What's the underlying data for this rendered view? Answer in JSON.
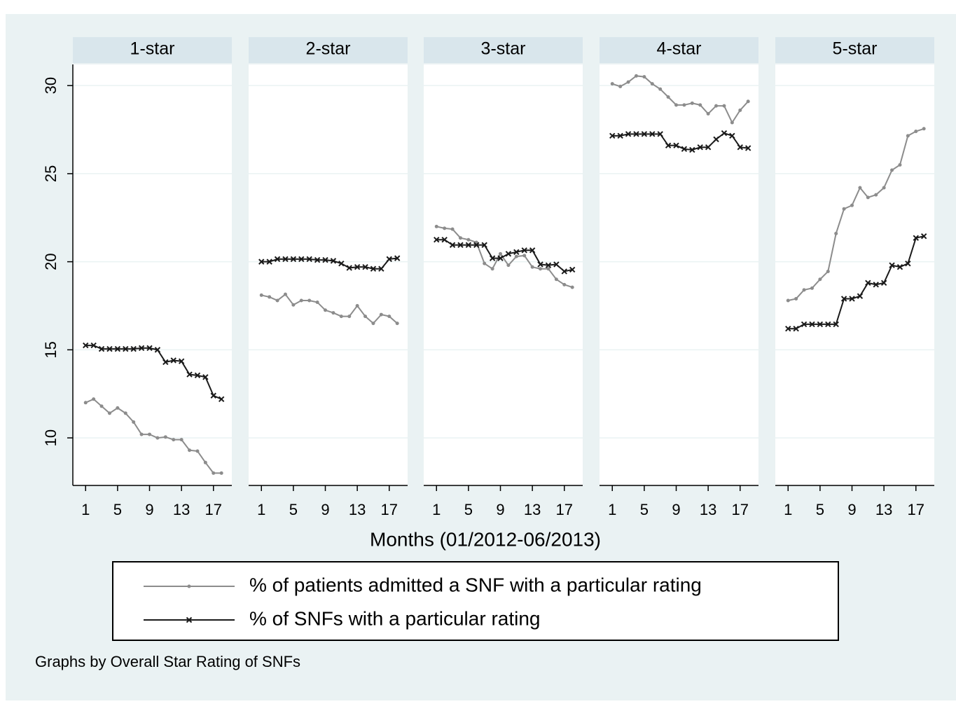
{
  "x_label": "Months (01/2012-06/2013)",
  "note": "Graphs by Overall Star Rating of SNFs",
  "chart_data": [
    {
      "type": "line",
      "title": "1-star",
      "x": [
        1,
        2,
        3,
        4,
        5,
        6,
        7,
        8,
        9,
        10,
        11,
        12,
        13,
        14,
        15,
        16,
        17,
        18
      ],
      "series": [
        {
          "name": "% of patients admitted a SNF with a particular rating",
          "color": "#8c8c8c",
          "marker": "circle",
          "values": [
            12.0,
            12.2,
            11.8,
            11.4,
            11.7,
            11.4,
            10.9,
            10.2,
            10.2,
            10.0,
            10.05,
            9.9,
            9.9,
            9.3,
            9.25,
            8.6,
            8.0,
            8.0
          ]
        },
        {
          "name": "% of SNFs with a particular rating",
          "color": "#1a1a1a",
          "marker": "x",
          "values": [
            15.25,
            15.25,
            15.05,
            15.05,
            15.05,
            15.05,
            15.05,
            15.1,
            15.1,
            15.0,
            14.3,
            14.4,
            14.35,
            13.6,
            13.55,
            13.45,
            12.4,
            12.2
          ]
        }
      ],
      "xlim": [
        -0.6,
        19.3
      ],
      "ylim": [
        7.3,
        31.2
      ],
      "xticks": [
        1,
        5,
        9,
        13,
        17
      ],
      "yticks": [
        10,
        15,
        20,
        25,
        30
      ],
      "grid": true
    },
    {
      "type": "line",
      "title": "2-star",
      "x": [
        1,
        2,
        3,
        4,
        5,
        6,
        7,
        8,
        9,
        10,
        11,
        12,
        13,
        14,
        15,
        16,
        17,
        18
      ],
      "series": [
        {
          "name": "% of patients admitted a SNF with a particular rating",
          "color": "#8c8c8c",
          "marker": "circle",
          "values": [
            18.1,
            18.0,
            17.8,
            18.15,
            17.55,
            17.8,
            17.8,
            17.7,
            17.25,
            17.1,
            16.9,
            16.9,
            17.5,
            16.9,
            16.5,
            17.0,
            16.9,
            16.5
          ]
        },
        {
          "name": "% of SNFs with a particular rating",
          "color": "#1a1a1a",
          "marker": "x",
          "values": [
            20.0,
            20.0,
            20.15,
            20.15,
            20.15,
            20.15,
            20.15,
            20.1,
            20.1,
            20.05,
            19.9,
            19.65,
            19.7,
            19.7,
            19.6,
            19.6,
            20.15,
            20.2
          ]
        }
      ],
      "xlim": [
        -0.6,
        19.3
      ],
      "ylim": [
        7.3,
        31.2
      ],
      "xticks": [
        1,
        5,
        9,
        13,
        17
      ],
      "yticks": [
        10,
        15,
        20,
        25,
        30
      ],
      "grid": true
    },
    {
      "type": "line",
      "title": "3-star",
      "x": [
        1,
        2,
        3,
        4,
        5,
        6,
        7,
        8,
        9,
        10,
        11,
        12,
        13,
        14,
        15,
        16,
        17,
        18
      ],
      "series": [
        {
          "name": "% of patients admitted a SNF with a particular rating",
          "color": "#8c8c8c",
          "marker": "circle",
          "values": [
            22.0,
            21.9,
            21.85,
            21.35,
            21.25,
            21.1,
            19.9,
            19.6,
            20.45,
            19.8,
            20.3,
            20.35,
            19.7,
            19.6,
            19.6,
            19.0,
            18.7,
            18.55
          ]
        },
        {
          "name": "% of SNFs with a particular rating",
          "color": "#1a1a1a",
          "marker": "x",
          "values": [
            21.25,
            21.25,
            20.95,
            20.95,
            20.95,
            20.95,
            20.95,
            20.2,
            20.2,
            20.45,
            20.55,
            20.65,
            20.65,
            19.85,
            19.8,
            19.85,
            19.45,
            19.55
          ]
        }
      ],
      "xlim": [
        -0.6,
        19.3
      ],
      "ylim": [
        7.3,
        31.2
      ],
      "xticks": [
        1,
        5,
        9,
        13,
        17
      ],
      "yticks": [
        10,
        15,
        20,
        25,
        30
      ],
      "grid": true
    },
    {
      "type": "line",
      "title": "4-star",
      "x": [
        1,
        2,
        3,
        4,
        5,
        6,
        7,
        8,
        9,
        10,
        11,
        12,
        13,
        14,
        15,
        16,
        17,
        18
      ],
      "series": [
        {
          "name": "% of patients admitted a SNF with a particular rating",
          "color": "#8c8c8c",
          "marker": "circle",
          "values": [
            30.1,
            29.95,
            30.2,
            30.55,
            30.5,
            30.1,
            29.8,
            29.35,
            28.9,
            28.9,
            29.0,
            28.9,
            28.4,
            28.85,
            28.85,
            27.9,
            28.6,
            29.1
          ]
        },
        {
          "name": "% of SNFs with a particular rating",
          "color": "#1a1a1a",
          "marker": "x",
          "values": [
            27.15,
            27.15,
            27.25,
            27.25,
            27.25,
            27.25,
            27.25,
            26.6,
            26.6,
            26.4,
            26.35,
            26.5,
            26.5,
            26.95,
            27.3,
            27.15,
            26.5,
            26.45
          ]
        }
      ],
      "xlim": [
        -0.6,
        19.3
      ],
      "ylim": [
        7.3,
        31.2
      ],
      "xticks": [
        1,
        5,
        9,
        13,
        17
      ],
      "yticks": [
        10,
        15,
        20,
        25,
        30
      ],
      "grid": true
    },
    {
      "type": "line",
      "title": "5-star",
      "x": [
        1,
        2,
        3,
        4,
        5,
        6,
        7,
        8,
        9,
        10,
        11,
        12,
        13,
        14,
        15,
        16,
        17,
        18
      ],
      "series": [
        {
          "name": "% of patients admitted a SNF with a particular rating",
          "color": "#8c8c8c",
          "marker": "circle",
          "values": [
            17.8,
            17.9,
            18.4,
            18.5,
            19.0,
            19.45,
            21.6,
            23.0,
            23.2,
            24.2,
            23.65,
            23.8,
            24.2,
            25.2,
            25.5,
            27.15,
            27.4,
            27.55
          ]
        },
        {
          "name": "% of SNFs with a particular rating",
          "color": "#1a1a1a",
          "marker": "x",
          "values": [
            16.2,
            16.2,
            16.45,
            16.45,
            16.45,
            16.45,
            16.45,
            17.9,
            17.9,
            18.05,
            18.8,
            18.7,
            18.8,
            19.8,
            19.7,
            19.9,
            21.35,
            21.45
          ]
        }
      ],
      "xlim": [
        -0.6,
        19.3
      ],
      "ylim": [
        7.3,
        31.2
      ],
      "xticks": [
        1,
        5,
        9,
        13,
        17
      ],
      "yticks": [
        10,
        15,
        20,
        25,
        30
      ],
      "grid": true
    }
  ]
}
